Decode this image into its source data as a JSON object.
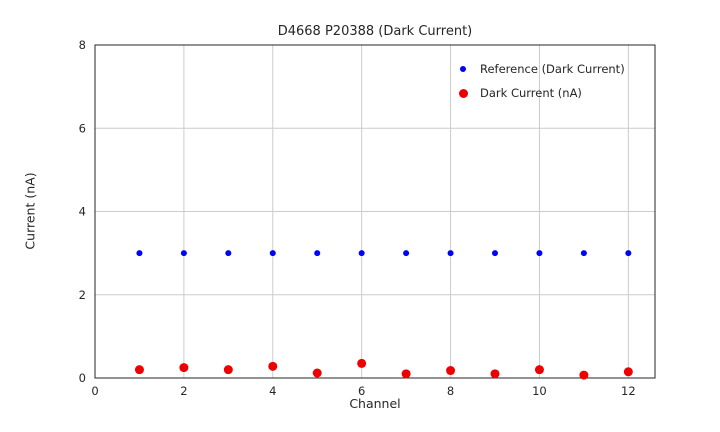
{
  "chart_data": {
    "type": "scatter",
    "title": "D4668 P20388 (Dark Current)",
    "xlabel": "Channel",
    "ylabel": "Current (nA)",
    "xlim": [
      0,
      12.6
    ],
    "ylim": [
      0,
      8
    ],
    "xticks": [
      0,
      2,
      4,
      6,
      8,
      10,
      12
    ],
    "yticks": [
      0,
      2,
      4,
      6,
      8
    ],
    "grid": true,
    "legend_position": "upper-right",
    "x": [
      1,
      2,
      3,
      4,
      5,
      6,
      7,
      8,
      9,
      10,
      11,
      12
    ],
    "series": [
      {
        "name": "Reference (Dark Current)",
        "color": "#0000ff",
        "marker_size": 3,
        "values": [
          3,
          3,
          3,
          3,
          3,
          3,
          3,
          3,
          3,
          3,
          3,
          3
        ]
      },
      {
        "name": "Dark Current (nA)",
        "color": "#ee0000",
        "marker_size": 4.5,
        "values": [
          0.2,
          0.25,
          0.2,
          0.28,
          0.12,
          0.35,
          0.1,
          0.18,
          0.1,
          0.2,
          0.07,
          0.15
        ]
      }
    ],
    "grid_color": "#cccccc",
    "border_color": "#262626",
    "text_color": "#262626"
  }
}
